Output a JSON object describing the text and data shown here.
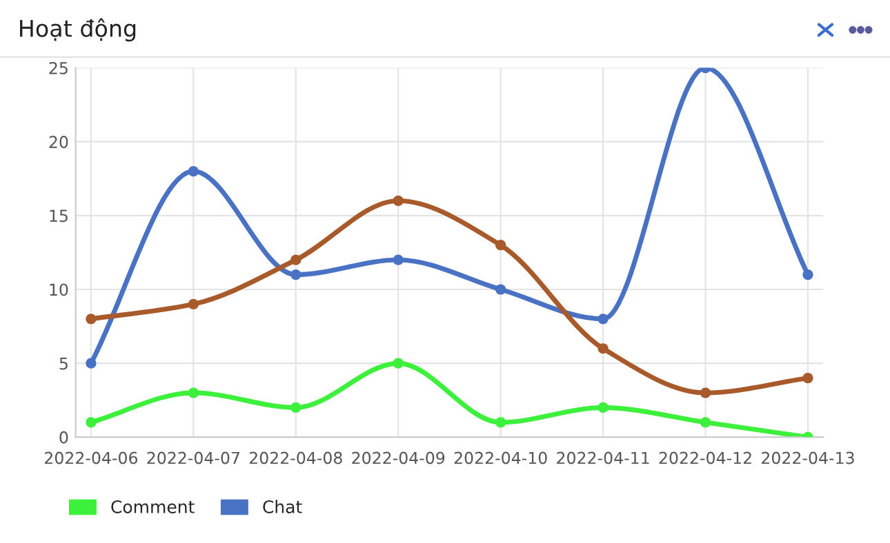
{
  "chart_data": {
    "type": "line",
    "title": "Hoạt động",
    "categories": [
      "2022-04-06",
      "2022-04-07",
      "2022-04-08",
      "2022-04-09",
      "2022-04-10",
      "2022-04-11",
      "2022-04-12",
      "2022-04-13"
    ],
    "series": [
      {
        "name": "Comment",
        "color": "#3cf03c",
        "values": [
          1,
          3,
          2,
          5,
          1,
          2,
          1,
          0
        ]
      },
      {
        "name": "Chat",
        "color": "#4a72c4",
        "values": [
          5,
          18,
          11,
          12,
          10,
          8,
          25,
          11
        ]
      },
      {
        "color": "#a85a2a",
        "values": [
          8,
          9,
          12,
          16,
          13,
          6,
          3,
          4
        ]
      }
    ],
    "ylim": [
      0,
      25
    ],
    "yticks": [
      0,
      5,
      10,
      15,
      20,
      25
    ],
    "grid": true,
    "legend": "bottom left",
    "marker": "circle",
    "line_style": "solid"
  }
}
